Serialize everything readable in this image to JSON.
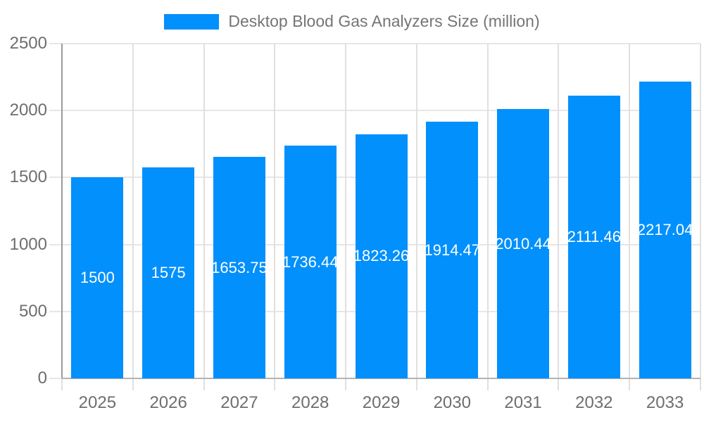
{
  "legend": {
    "label": "Desktop Blood Gas Analyzers Size (million)"
  },
  "colors": {
    "bar": "#0290fc",
    "value_label": "#ffffff",
    "axis_text": "#6e6e6e",
    "title_text": "#757575",
    "grid_h": "#e6e6e6",
    "grid_v": "#e0e0e0",
    "y_axis_line": "#9a9a9a",
    "x_axis_line": "#b3b3b3"
  },
  "chart_data": {
    "type": "bar",
    "title": "Desktop Blood Gas Analyzers Size (million)",
    "categories": [
      "2025",
      "2026",
      "2027",
      "2028",
      "2029",
      "2030",
      "2031",
      "2032",
      "2033"
    ],
    "values": [
      1500,
      1575,
      1653.75,
      1736.44,
      1823.26,
      1914.47,
      2010.44,
      2111.46,
      2217.04
    ],
    "value_labels": [
      "1500",
      "1575",
      "1653.75",
      "1736.44",
      "1823.26",
      "1914.47",
      "2010.44",
      "2111.46",
      "2217.04"
    ],
    "xlabel": "",
    "ylabel": "",
    "ylim": [
      0,
      2500
    ],
    "yticks": [
      0,
      500,
      1000,
      1500,
      2000,
      2500
    ],
    "grid": true,
    "legend_position": "top",
    "value_label_position": "inside-center"
  }
}
